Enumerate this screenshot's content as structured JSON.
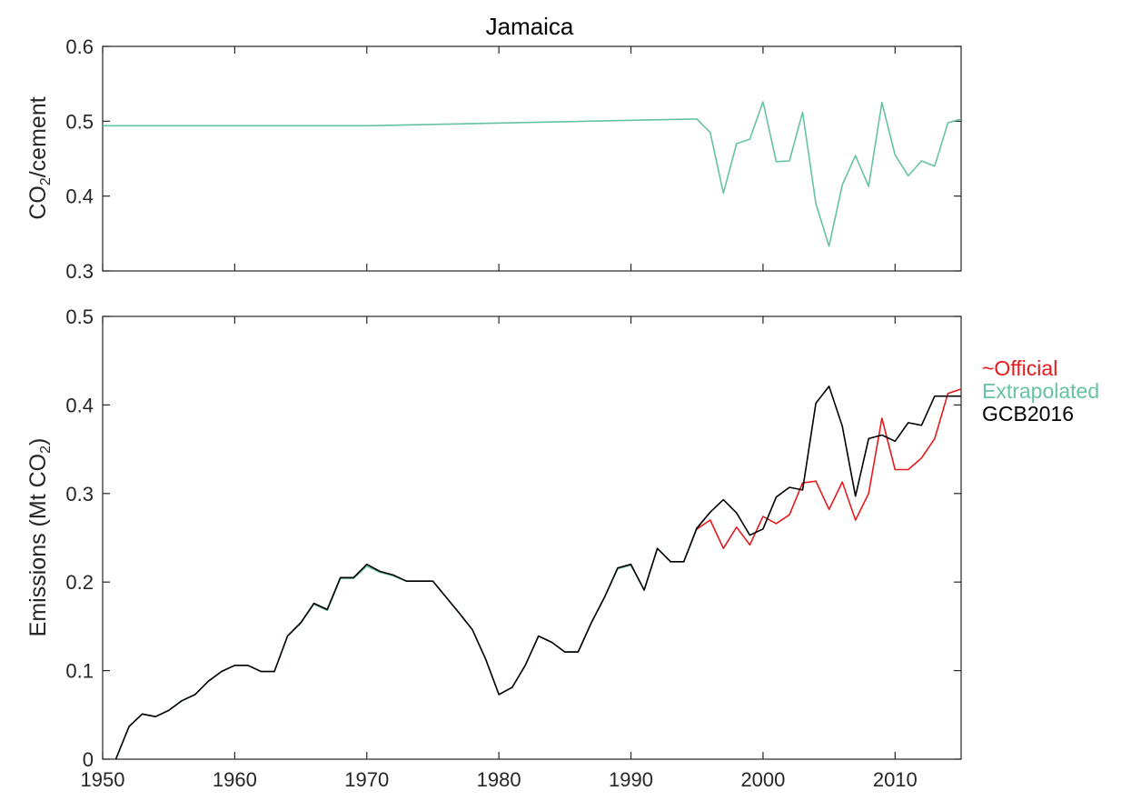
{
  "chart_data": [
    {
      "type": "line",
      "title": "Jamaica",
      "ylabel": {
        "main": "CO",
        "sub": "2",
        "rest": "/cement"
      },
      "xlim": [
        1950,
        2015
      ],
      "ylim": [
        0.3,
        0.6
      ],
      "yticks": [
        "0.3",
        "0.4",
        "0.5",
        "0.6"
      ],
      "xticks": [
        1950,
        1960,
        1970,
        1980,
        1990,
        2000,
        2010
      ],
      "grid": false,
      "series": [
        {
          "name": "Extrapolated",
          "color": "#66c2a5",
          "x": [
            1950,
            1970,
            1995,
            1996,
            1997,
            1998,
            1999,
            2000,
            2001,
            2002,
            2003,
            2004,
            2005,
            2006,
            2007,
            2008,
            2009,
            2010,
            2011,
            2012,
            2013,
            2014,
            2015
          ],
          "y": [
            0.494,
            0.494,
            0.503,
            0.485,
            0.404,
            0.47,
            0.476,
            0.526,
            0.446,
            0.447,
            0.512,
            0.39,
            0.333,
            0.415,
            0.454,
            0.413,
            0.525,
            0.455,
            0.427,
            0.447,
            0.44,
            0.498,
            0.503
          ]
        }
      ]
    },
    {
      "type": "line",
      "ylabel": {
        "main": "Emissions (Mt CO",
        "sub": "2",
        "rest": ")"
      },
      "xlim": [
        1950,
        2015
      ],
      "ylim": [
        0,
        0.5
      ],
      "yticks": [
        "0",
        "0.1",
        "0.2",
        "0.3",
        "0.4",
        "0.5"
      ],
      "xticks": [
        1950,
        1960,
        1970,
        1980,
        1990,
        2000,
        2010
      ],
      "xticklabels": [
        "1950",
        "1960",
        "1970",
        "1980",
        "1990",
        "2000",
        "2010"
      ],
      "grid": false,
      "legend_placement": "outside-right",
      "series": [
        {
          "name": "~Official",
          "color": "#e41a1c",
          "x": [
            1995,
            1996,
            1997,
            1998,
            1999,
            2000,
            2001,
            2002,
            2003,
            2004,
            2005,
            2006,
            2007,
            2008,
            2009,
            2010,
            2011,
            2012,
            2013,
            2014,
            2015
          ],
          "y": [
            0.26,
            0.27,
            0.238,
            0.262,
            0.242,
            0.274,
            0.266,
            0.276,
            0.312,
            0.314,
            0.282,
            0.313,
            0.27,
            0.3,
            0.385,
            0.327,
            0.327,
            0.34,
            0.362,
            0.413,
            0.418
          ]
        },
        {
          "name": "Extrapolated",
          "color": "#66c2a5",
          "x": [
            1951,
            1952,
            1953,
            1954,
            1955,
            1956,
            1957,
            1958,
            1959,
            1960,
            1961,
            1962,
            1963,
            1964,
            1965,
            1966,
            1967,
            1968,
            1969,
            1970,
            1971,
            1972,
            1973,
            1974,
            1975,
            1976,
            1977,
            1978,
            1979,
            1980,
            1981,
            1982,
            1983,
            1984,
            1985,
            1986,
            1987,
            1988,
            1989,
            1990,
            1991,
            1992,
            1993,
            1994,
            1995
          ],
          "y": [
            0,
            0.037,
            0.051,
            0.048,
            0.055,
            0.066,
            0.073,
            0.088,
            0.099,
            0.106,
            0.106,
            0.099,
            0.099,
            0.139,
            0.154,
            0.175,
            0.168,
            0.204,
            0.204,
            0.218,
            0.211,
            0.207,
            0.201,
            0.201,
            0.201,
            0.183,
            0.165,
            0.146,
            0.113,
            0.073,
            0.081,
            0.106,
            0.139,
            0.132,
            0.121,
            0.121,
            0.154,
            0.183,
            0.215,
            0.219,
            0.191,
            0.238,
            0.223,
            0.223,
            0.262
          ]
        },
        {
          "name": "GCB2016",
          "color": "#000000",
          "x": [
            1951,
            1952,
            1953,
            1954,
            1955,
            1956,
            1957,
            1958,
            1959,
            1960,
            1961,
            1962,
            1963,
            1964,
            1965,
            1966,
            1967,
            1968,
            1969,
            1970,
            1971,
            1972,
            1973,
            1974,
            1975,
            1976,
            1977,
            1978,
            1979,
            1980,
            1981,
            1982,
            1983,
            1984,
            1985,
            1986,
            1987,
            1988,
            1989,
            1990,
            1991,
            1992,
            1993,
            1994,
            1995,
            1996,
            1997,
            1998,
            1999,
            2000,
            2001,
            2002,
            2003,
            2004,
            2005,
            2006,
            2007,
            2008,
            2009,
            2010,
            2011,
            2012,
            2013,
            2014,
            2015
          ],
          "y": [
            0,
            0.037,
            0.051,
            0.048,
            0.055,
            0.066,
            0.073,
            0.088,
            0.099,
            0.106,
            0.106,
            0.099,
            0.099,
            0.139,
            0.154,
            0.176,
            0.169,
            0.205,
            0.205,
            0.22,
            0.212,
            0.208,
            0.201,
            0.201,
            0.201,
            0.183,
            0.165,
            0.146,
            0.113,
            0.073,
            0.081,
            0.106,
            0.139,
            0.132,
            0.121,
            0.121,
            0.154,
            0.183,
            0.216,
            0.22,
            0.191,
            0.238,
            0.223,
            0.223,
            0.261,
            0.279,
            0.293,
            0.278,
            0.253,
            0.26,
            0.296,
            0.307,
            0.304,
            0.402,
            0.421,
            0.376,
            0.297,
            0.362,
            0.366,
            0.359,
            0.38,
            0.377,
            0.41,
            0.41,
            0.41
          ]
        }
      ]
    }
  ]
}
